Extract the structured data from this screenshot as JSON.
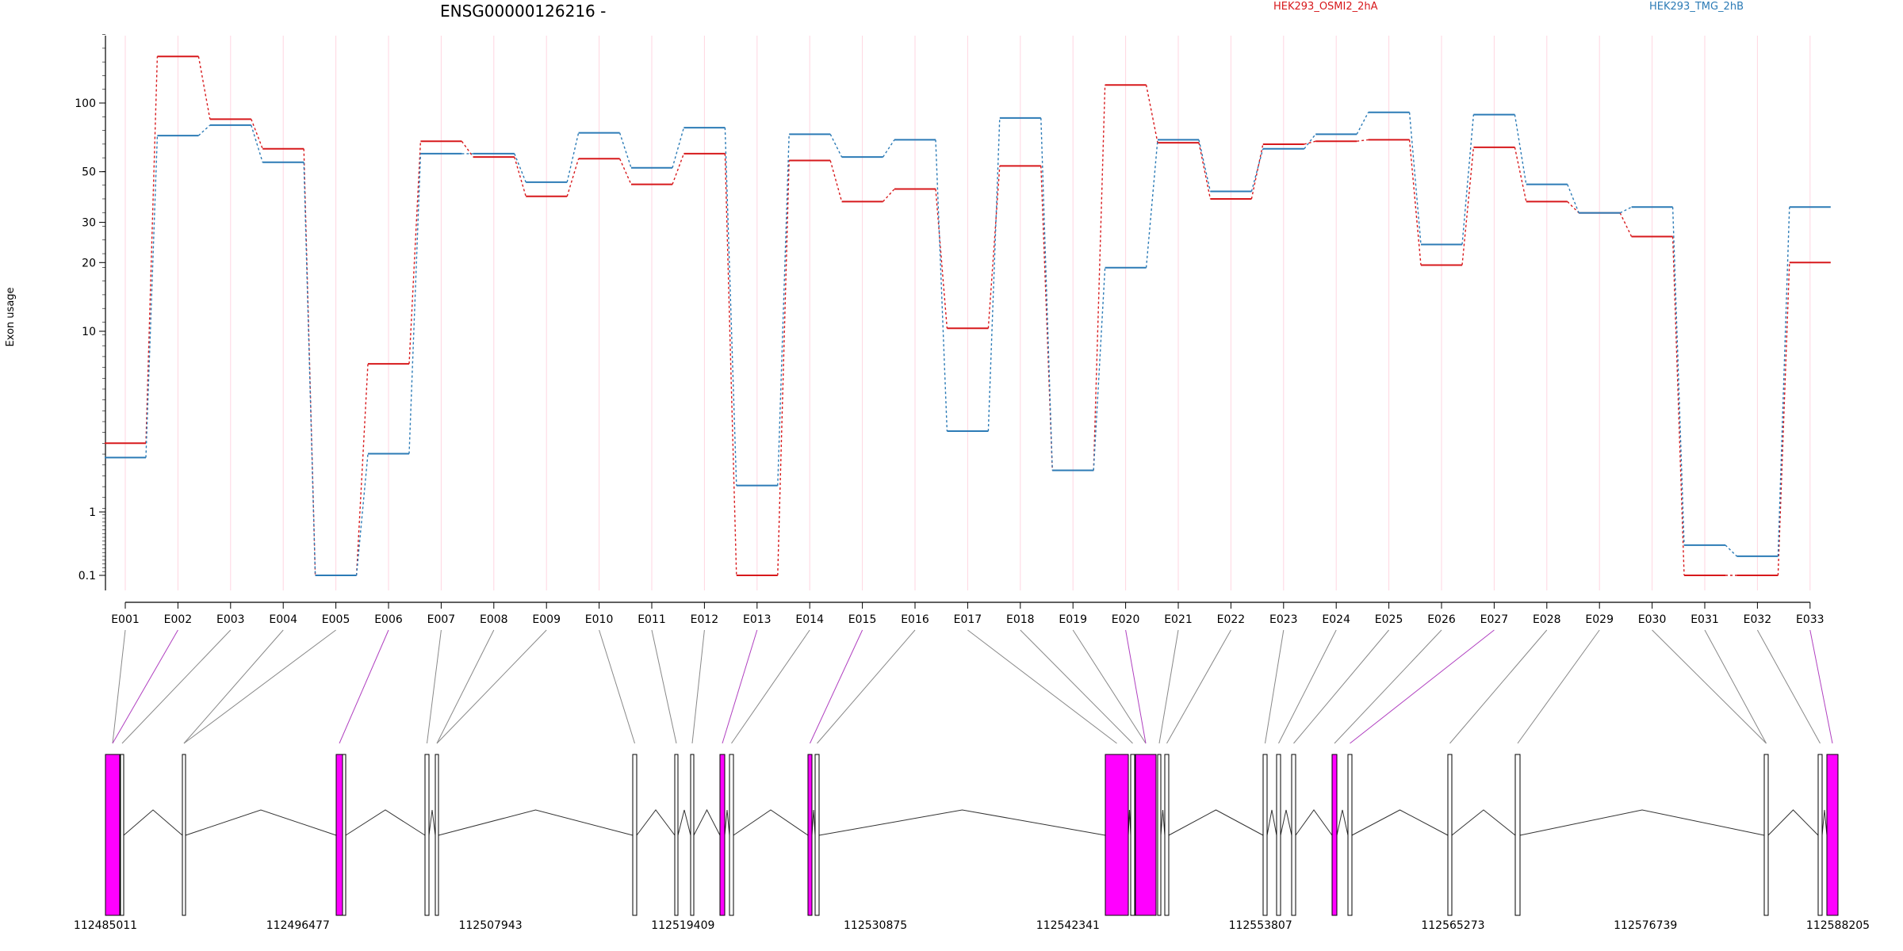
{
  "title": "ENSG00000126216 -",
  "ylabel": "Exon usage",
  "colors": {
    "series_a": "#d7191c",
    "series_b": "#2c7bb6",
    "exon_highlight": "#ff00ff",
    "grid": "#ffd6e0"
  },
  "chart_data": {
    "type": "line",
    "scale": "log",
    "yticks": [
      0.1,
      1,
      10,
      20,
      30,
      50,
      100
    ],
    "ytick_labels": [
      "0.1",
      "1",
      "10",
      "20",
      "30",
      "50",
      "100"
    ],
    "categories": [
      "E001",
      "E002",
      "E003",
      "E004",
      "E005",
      "E006",
      "E007",
      "E008",
      "E009",
      "E010",
      "E011",
      "E012",
      "E013",
      "E014",
      "E015",
      "E016",
      "E017",
      "E018",
      "E019",
      "E020",
      "E021",
      "E022",
      "E023",
      "E024",
      "E025",
      "E026",
      "E027",
      "E028",
      "E029",
      "E030",
      "E031",
      "E032",
      "E033"
    ],
    "highlighted_exons": [
      "E002",
      "E006",
      "E013",
      "E015",
      "E020",
      "E027",
      "E033"
    ],
    "series": [
      {
        "name": "HEK293_OSMI2_2hA",
        "color": "#d7191c",
        "values": [
          2.4,
          160,
          85,
          63,
          0.1,
          6.6,
          68,
          58,
          39,
          57,
          44,
          60,
          0.1,
          56,
          37,
          42,
          10.3,
          53,
          1.7,
          120,
          67,
          38,
          66,
          68,
          69,
          19.5,
          64,
          37,
          33,
          26,
          0.1,
          0.1,
          20
        ]
      },
      {
        "name": "HEK293_TMG_2hB",
        "color": "#2c7bb6",
        "values": [
          2.0,
          72,
          80,
          55,
          0.1,
          2.1,
          60,
          60,
          45,
          74,
          52,
          78,
          1.4,
          73,
          58,
          69,
          2.8,
          86,
          1.7,
          19,
          69,
          41,
          63,
          73,
          91,
          24,
          89,
          44,
          33,
          35,
          0.3,
          0.2,
          35
        ]
      }
    ]
  },
  "gene_model": {
    "coordinate_labels": [
      "112485011",
      "112496477",
      "112507943",
      "112519409",
      "112530875",
      "112542341",
      "112553807",
      "112565273",
      "112576739",
      "112588205"
    ]
  }
}
